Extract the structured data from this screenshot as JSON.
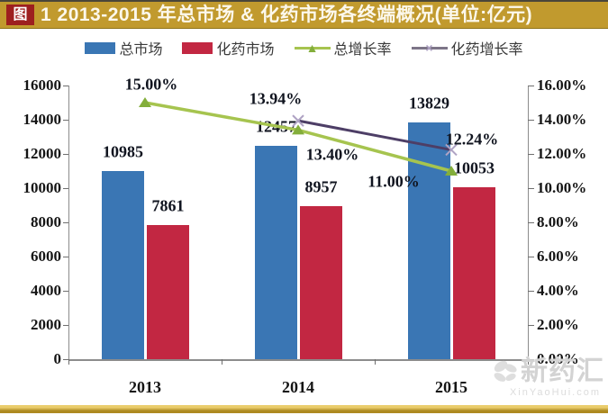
{
  "page": {
    "band_color": "#C19A2E",
    "band_tag_bg": "#9D1F1F",
    "accent_gold": "#AE8A21"
  },
  "title": {
    "tag": "图",
    "text": "1 2013-2015 年总市场 & 化药市场各终端概况(单位:亿元)"
  },
  "watermark": {
    "name": "新药汇",
    "site": "XinYaoHui.com"
  },
  "chart_data": {
    "type": "bar",
    "categories": [
      "2013",
      "2014",
      "2015"
    ],
    "series": [
      {
        "key": "total-market",
        "name": "总市场",
        "type": "bar",
        "axis": "left",
        "color": "#3A76B4",
        "values": [
          10985,
          12457,
          13829
        ]
      },
      {
        "key": "chem-market",
        "name": "化药市场",
        "type": "bar",
        "axis": "left",
        "color": "#C22742",
        "values": [
          7861,
          8957,
          10053
        ]
      },
      {
        "key": "total-growth",
        "name": "总增长率",
        "type": "line",
        "axis": "right",
        "color": "#A6C44F",
        "marker": "triangle",
        "marker_color": "#83AE3B",
        "values": [
          15.0,
          13.4,
          11.0
        ],
        "labels": [
          "15.00%",
          "13.40%",
          "11.00%"
        ]
      },
      {
        "key": "chem-growth",
        "name": "化药增长率",
        "type": "line",
        "axis": "right",
        "color": "#4D3E66",
        "marker": "x",
        "marker_color": "#AFA3C4",
        "values": [
          null,
          13.94,
          12.24
        ],
        "labels": [
          null,
          "13.94%",
          "12.24%"
        ]
      }
    ],
    "left_axis": {
      "min": 0,
      "max": 16000,
      "step": 2000,
      "ticks": [
        "16000",
        "14000",
        "12000",
        "10000",
        "8000",
        "6000",
        "4000",
        "2000",
        "0"
      ]
    },
    "right_axis": {
      "min": 0,
      "max": 16,
      "step": 2,
      "ticks": [
        "16.00%",
        "14.00%",
        "12.00%",
        "10.00%",
        "8.00%",
        "6.00%",
        "4.00%",
        "2.00%",
        "0.00%"
      ]
    },
    "grid": false,
    "legend_position": "top-center",
    "xlabel": "",
    "ylabel": ""
  }
}
